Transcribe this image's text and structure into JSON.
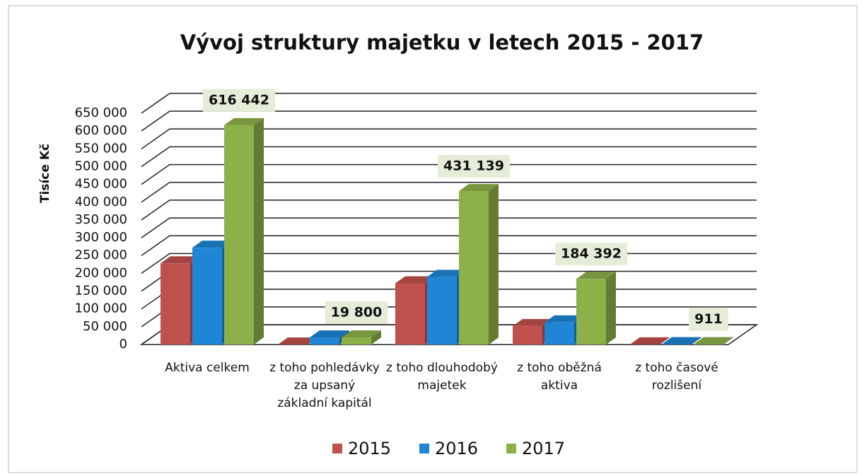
{
  "chart_data": {
    "type": "bar3d",
    "title": "Vývoj struktury majetku v letech 2015 - 2017",
    "y_label": "Tisíce Kč",
    "categories": [
      "Aktiva celkem",
      "z toho pohledávky za upsaný základní kapitál",
      "z toho dlouhodobý majetek",
      "z toho oběžná aktiva",
      "z toho časové rozlišení"
    ],
    "series": [
      {
        "name": "2015",
        "color": "#c0504d",
        "values": [
          228000,
          0,
          172000,
          52000,
          500
        ]
      },
      {
        "name": "2016",
        "color": "#1f86d6",
        "values": [
          272000,
          19800,
          190000,
          62000,
          900
        ]
      },
      {
        "name": "2017",
        "color": "#8db048",
        "values": [
          616442,
          19800,
          431139,
          184392,
          911
        ],
        "value_labels": [
          "616 442",
          "19 800",
          "431 139",
          "184 392",
          "911"
        ]
      }
    ],
    "ylim": [
      0,
      650000
    ],
    "yticks": [
      0,
      {
        "value": 50000,
        "label": "50 000"
      },
      {
        "value": 100000,
        "label": "100 000"
      },
      {
        "value": 150000,
        "label": "150 000"
      },
      {
        "value": 200000,
        "label": "200 000"
      },
      {
        "value": 250000,
        "label": "250 000"
      },
      {
        "value": 300000,
        "label": "300 000"
      },
      {
        "value": 350000,
        "label": "350 000"
      },
      {
        "value": 400000,
        "label": "400 000"
      },
      {
        "value": 450000,
        "label": "450 000"
      },
      {
        "value": 500000,
        "label": "500 000"
      },
      {
        "value": 550000,
        "label": "550 000"
      },
      {
        "value": 600000,
        "label": "600 000"
      },
      {
        "value": 650000,
        "label": "650 000"
      }
    ],
    "grid": true
  }
}
